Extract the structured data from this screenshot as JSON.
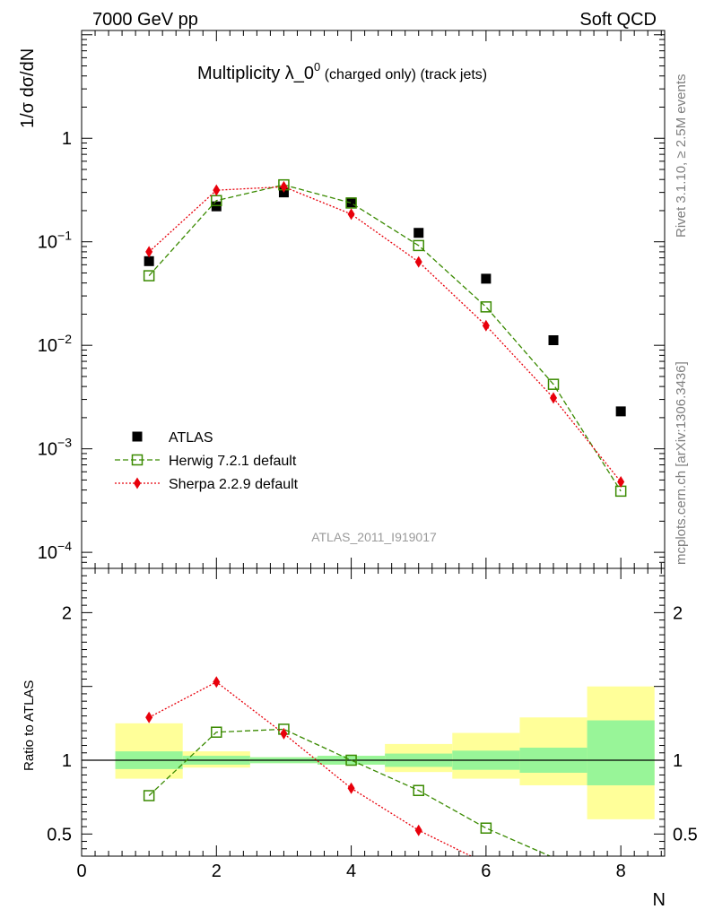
{
  "header": {
    "left": "7000 GeV pp",
    "right": "Soft QCD"
  },
  "plot_title": {
    "main": "Multiplicity λ_0",
    "sup": "0",
    "suffix": " (charged only) (track jets)"
  },
  "side_labels": {
    "rivet": "Rivet 3.1.10, ≥ 2.5M events",
    "mcplots": "mcplots.cern.ch [arXiv:1306.3436]"
  },
  "reference": "ATLAS_2011_I919017",
  "colors": {
    "data": "#000000",
    "herwig": "#3a8a00",
    "sherpa": "#e8000b",
    "band_inner": "#98f598",
    "band_outer": "#ffff99"
  },
  "chart_data": [
    {
      "type": "scatter",
      "yscale": "log",
      "ylabel": "1/σ dσ/dN",
      "xlim": [
        0,
        8.65
      ],
      "ylim": [
        7e-05,
        11
      ],
      "y_ticks": [
        {
          "value": 0.0001,
          "label": "10",
          "exp": "−4"
        },
        {
          "value": 0.001,
          "label": "10",
          "exp": "−3"
        },
        {
          "value": 0.01,
          "label": "10",
          "exp": "−2"
        },
        {
          "value": 0.1,
          "label": "10",
          "exp": "−1"
        },
        {
          "value": 1,
          "label": "1",
          "exp": ""
        }
      ],
      "legend_position": "lower-left",
      "series": [
        {
          "name": "ATLAS",
          "x": [
            1,
            2,
            3,
            4,
            5,
            6,
            7,
            8
          ],
          "y": [
            0.065,
            0.22,
            0.3,
            0.24,
            0.122,
            0.044,
            0.0112,
            0.0023
          ],
          "marker": "square-filled",
          "style": "none",
          "color": "#000000"
        },
        {
          "name": "Herwig 7.2.1 default",
          "x": [
            1,
            2,
            3,
            4,
            5,
            6,
            7,
            8
          ],
          "y": [
            0.047,
            0.25,
            0.355,
            0.237,
            0.092,
            0.0235,
            0.0042,
            0.00039
          ],
          "marker": "square-open",
          "style": "dashed",
          "color": "#3a8a00"
        },
        {
          "name": "Sherpa 2.2.9 default",
          "x": [
            1,
            2,
            3,
            4,
            5,
            6,
            7,
            8
          ],
          "y": [
            0.08,
            0.315,
            0.34,
            0.185,
            0.064,
            0.0155,
            0.0031,
            0.00048
          ],
          "marker": "diamond-filled",
          "style": "dotted",
          "color": "#e8000b"
        }
      ]
    },
    {
      "type": "line",
      "xlabel": "N",
      "ylabel": "Ratio to ATLAS",
      "xlim": [
        0,
        8.65
      ],
      "ylim": [
        0.35,
        2.3
      ],
      "x_ticks": [
        0,
        2,
        4,
        6,
        8
      ],
      "y_ticks": [
        0.5,
        1,
        2
      ],
      "bands": {
        "x": [
          1,
          2,
          3,
          4,
          5,
          6,
          7,
          8
        ],
        "inner_lo": [
          0.94,
          0.97,
          0.98,
          0.97,
          0.955,
          0.935,
          0.915,
          0.83
        ],
        "inner_hi": [
          1.06,
          1.03,
          1.02,
          1.03,
          1.045,
          1.065,
          1.085,
          1.27
        ],
        "outer_lo": [
          0.875,
          0.95,
          0.98,
          0.97,
          0.92,
          0.875,
          0.83,
          0.6
        ],
        "outer_hi": [
          1.25,
          1.06,
          1.02,
          1.03,
          1.11,
          1.185,
          1.29,
          1.5
        ]
      },
      "series": [
        {
          "name": "Herwig 7.2.1 default",
          "x": [
            1,
            2,
            3,
            4,
            5,
            6,
            7
          ],
          "y": [
            0.76,
            1.19,
            1.21,
            1.0,
            0.795,
            0.54,
            0.34
          ],
          "color": "#3a8a00",
          "style": "dashed",
          "marker": "square-open"
        },
        {
          "name": "Sherpa 2.2.9 default",
          "x": [
            1,
            2,
            3,
            4,
            5,
            6
          ],
          "y": [
            1.29,
            1.53,
            1.18,
            0.81,
            0.525,
            0.3
          ],
          "color": "#e8000b",
          "style": "dotted",
          "marker": "diamond-filled"
        }
      ]
    }
  ]
}
